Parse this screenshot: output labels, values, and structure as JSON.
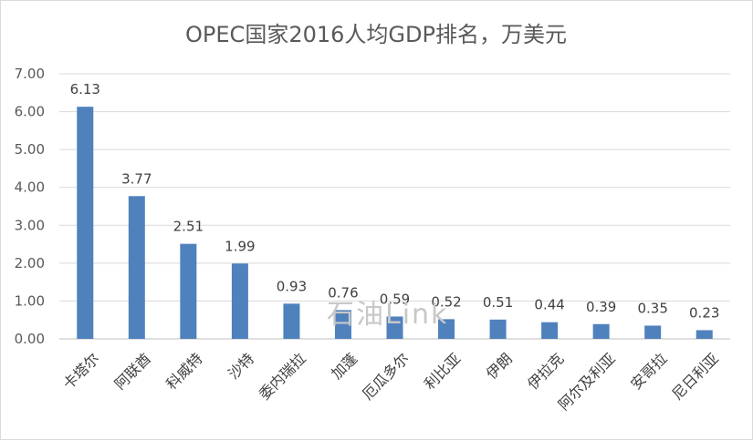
{
  "chart_data": {
    "type": "bar",
    "title": "OPEC国家2016人均GDP排名，万美元",
    "categories": [
      "卡塔尔",
      "阿联酋",
      "科威特",
      "沙特",
      "委内瑞拉",
      "加蓬",
      "厄瓜多尔",
      "利比亚",
      "伊朗",
      "伊拉克",
      "阿尔及利亚",
      "安哥拉",
      "尼日利亚"
    ],
    "values": [
      6.13,
      3.77,
      2.51,
      1.99,
      0.93,
      0.76,
      0.59,
      0.52,
      0.51,
      0.44,
      0.39,
      0.35,
      0.23
    ],
    "value_labels": [
      "6.13",
      "3.77",
      "2.51",
      "1.99",
      "0.93",
      "0.76",
      "0.59",
      "0.52",
      "0.51",
      "0.44",
      "0.39",
      "0.35",
      "0.23"
    ],
    "y_ticks": [
      "0.00",
      "1.00",
      "2.00",
      "3.00",
      "4.00",
      "5.00",
      "6.00",
      "7.00"
    ],
    "ylim": [
      0,
      7
    ],
    "grid": true,
    "legend": "none",
    "bar_color": "#4f81bd",
    "xlabel": "",
    "ylabel": ""
  },
  "watermark": "石油Link"
}
